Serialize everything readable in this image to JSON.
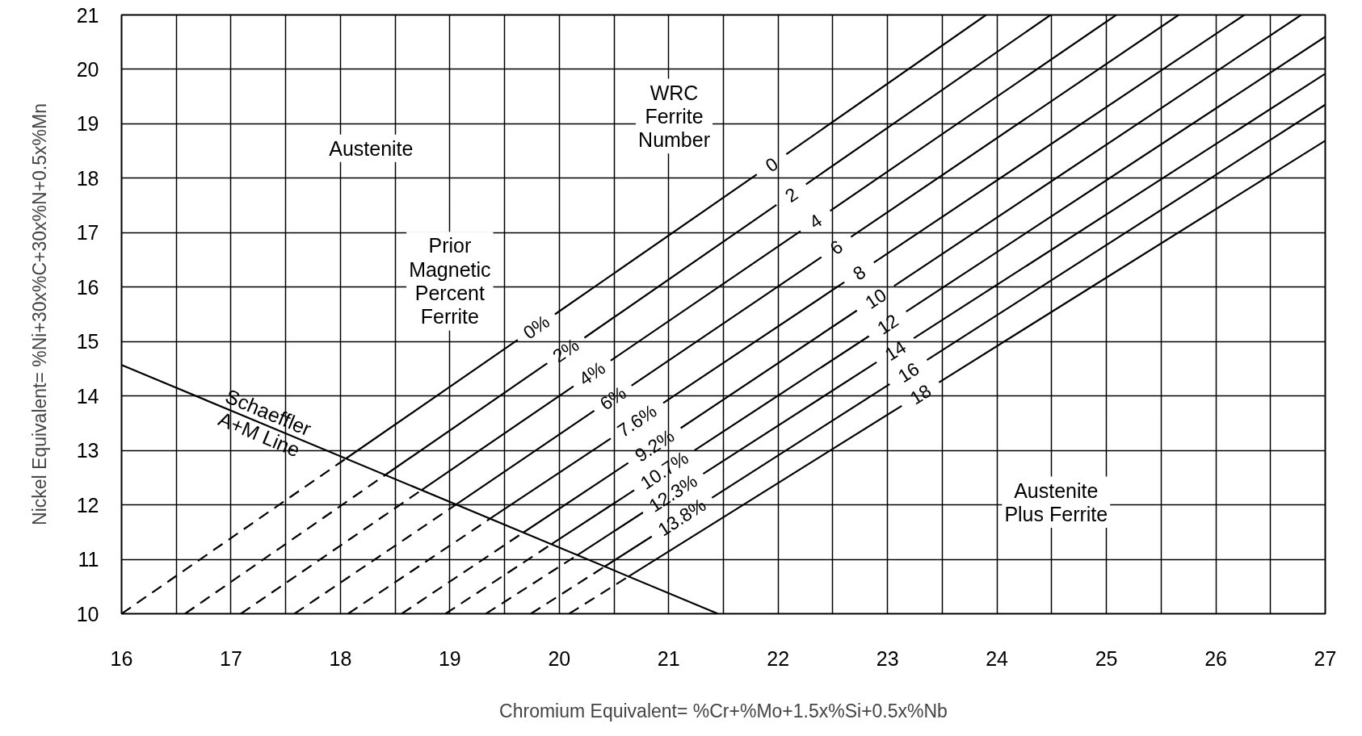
{
  "chart_data": {
    "type": "line",
    "xlabel": "Chromium Equivalent= %Cr+%Mo+1.5x%Si+0.5x%Nb",
    "ylabel": "Nickel Equivalent= %Ni+30x%C+30x%N+0.5x%Mn",
    "xlim": [
      16,
      27
    ],
    "ylim": [
      10,
      21
    ],
    "xticks": [
      16,
      {
        "value": 16.5,
        "label": null
      },
      17,
      {
        "value": 17.5,
        "label": null
      },
      18,
      {
        "value": 18.5,
        "label": null
      },
      19,
      {
        "value": 19.5,
        "label": null
      },
      20,
      {
        "value": 20.5,
        "label": null
      },
      21,
      {
        "value": 21.5,
        "label": null
      },
      22,
      {
        "value": 22.5,
        "label": null
      },
      23,
      {
        "value": 23.5,
        "label": null
      },
      24,
      {
        "value": 24.5,
        "label": null
      },
      25,
      {
        "value": 25.5,
        "label": null
      },
      26,
      {
        "value": 26.5,
        "label": null
      },
      27
    ],
    "yticks": [
      10,
      11,
      12,
      13,
      14,
      15,
      16,
      17,
      18,
      19,
      20,
      21
    ],
    "grid": true,
    "series": [
      {
        "color": "#000000",
        "line_style": "solid",
        "x": [
          16,
          21.45
        ],
        "values": [
          14.57,
          10
        ]
      },
      {
        "color": "#000000",
        "line_style": "dashed",
        "x": [
          16,
          18.05
        ],
        "values": [
          10,
          12.85
        ]
      },
      {
        "color": "#000000",
        "line_style": "solid",
        "x": [
          18.05,
          19.62,
          19.79,
          19.96,
          21.805,
          21.94,
          22.075,
          23.9
        ],
        "values": [
          12.85,
          15.03,
          null,
          15.5,
          18.07,
          null,
          18.44,
          21
        ]
      },
      {
        "color": "#000000",
        "line_style": "dashed",
        "x": [
          16.58,
          18.41
        ],
        "values": [
          10,
          12.55
        ]
      },
      {
        "color": "#000000",
        "line_style": "solid",
        "x": [
          18.41,
          19.89,
          20.06,
          20.23,
          21.985,
          22.12,
          22.255,
          24.49
        ],
        "values": [
          12.55,
          14.6,
          null,
          15.07,
          17.51,
          null,
          17.89,
          21
        ]
      },
      {
        "color": "#000000",
        "line_style": "dashed",
        "x": [
          17.09,
          18.74
        ],
        "values": [
          10,
          12.27
        ]
      },
      {
        "color": "#000000",
        "line_style": "solid",
        "x": [
          18.74,
          20.13,
          20.3,
          20.47,
          22.205,
          22.34,
          22.475,
          25.09
        ],
        "values": [
          12.27,
          14.18,
          null,
          14.65,
          17.03,
          null,
          17.4,
          21
        ]
      },
      {
        "color": "#000000",
        "line_style": "dashed",
        "x": [
          17.58,
          19.06
        ],
        "values": [
          10,
          12.01
        ]
      },
      {
        "color": "#000000",
        "line_style": "solid",
        "x": [
          19.06,
          20.32,
          20.49,
          20.66,
          22.395,
          22.53,
          22.665,
          25.66
        ],
        "values": [
          12.01,
          13.73,
          null,
          14.19,
          16.55,
          null,
          16.92,
          21
        ]
      },
      {
        "color": "#000000",
        "line_style": "dashed",
        "x": [
          18.07,
          19.37
        ],
        "values": [
          10,
          11.75
        ]
      },
      {
        "color": "#000000",
        "line_style": "solid",
        "x": [
          19.37,
          20.47,
          20.71,
          20.95,
          22.605,
          22.74,
          22.875,
          26.26
        ],
        "values": [
          11.75,
          13.22,
          null,
          13.87,
          16.09,
          null,
          16.45,
          21
        ]
      },
      {
        "color": "#000000",
        "line_style": "dashed",
        "x": [
          18.56,
          19.67
        ],
        "values": [
          10,
          11.49
        ]
      },
      {
        "color": "#000000",
        "line_style": "solid",
        "x": [
          19.67,
          20.63,
          20.87,
          21.11,
          22.72,
          22.89,
          23.06,
          26.78
        ],
        "values": [
          11.49,
          12.77,
          null,
          13.41,
          15.57,
          null,
          16.02,
          21
        ]
      },
      {
        "color": "#000000",
        "line_style": "dashed",
        "x": [
          18.96,
          19.93
        ],
        "values": [
          10,
          11.28
        ]
      },
      {
        "color": "#000000",
        "line_style": "solid",
        "x": [
          19.93,
          20.685,
          20.96,
          21.235,
          22.83,
          23.0,
          23.17,
          27
        ],
        "values": [
          11.28,
          12.27,
          null,
          13.0,
          15.1,
          null,
          15.55,
          20.6
        ]
      },
      {
        "color": "#000000",
        "line_style": "dashed",
        "x": [
          19.33,
          20.16
        ],
        "values": [
          10,
          11.07
        ]
      },
      {
        "color": "#000000",
        "line_style": "solid",
        "x": [
          20.16,
          20.765,
          21.04,
          21.315,
          22.9,
          23.07,
          23.24,
          27
        ],
        "values": [
          11.07,
          11.86,
          null,
          12.57,
          14.62,
          null,
          15.06,
          19.92
        ]
      },
      {
        "color": "#000000",
        "line_style": "dashed",
        "x": [
          19.74,
          20.41
        ],
        "values": [
          10,
          10.86
        ]
      },
      {
        "color": "#000000",
        "line_style": "solid",
        "x": [
          20.41,
          20.845,
          21.12,
          21.395,
          23.02,
          23.19,
          23.36,
          27
        ],
        "values": [
          10.86,
          11.42,
          null,
          12.13,
          14.22,
          null,
          14.66,
          19.35
        ]
      },
      {
        "color": "#000000",
        "line_style": "dashed",
        "x": [
          20.09,
          20.63
        ],
        "values": [
          10,
          10.68
        ]
      },
      {
        "color": "#000000",
        "line_style": "solid",
        "x": [
          20.63,
          23.13,
          23.3,
          23.47,
          27
        ],
        "values": [
          10.68,
          13.82,
          null,
          14.25,
          18.69
        ]
      }
    ],
    "annotations": [
      "Austenite",
      "WRC\nFerrite\nNumber",
      "Prior\nMagnetic\nPercent\nFerrite",
      {
        "text": "Schaeffler\nA+M Line",
        "x": 17.3,
        "y": 13.5
      },
      "Austenite\nPlus Ferrite",
      "0",
      "2",
      "4",
      "6",
      "8",
      "10",
      "12",
      "14",
      "16",
      "18",
      "0%",
      "2%",
      "4%",
      "6%",
      "7.6%",
      "9.2%",
      "10.7%",
      "12.3%",
      "13.8%"
    ]
  }
}
